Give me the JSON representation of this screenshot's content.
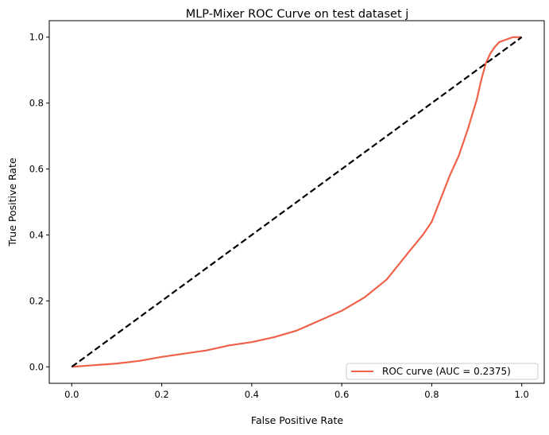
{
  "chart_data": {
    "type": "line",
    "title": "MLP-Mixer ROC Curve on test dataset j",
    "xlabel": "False Positive Rate",
    "ylabel": "True Positive Rate",
    "xlim": [
      -0.05,
      1.05
    ],
    "ylim": [
      -0.05,
      1.05
    ],
    "xticks": [
      0.0,
      0.2,
      0.4,
      0.6,
      0.8,
      1.0
    ],
    "xtick_labels": [
      "0.0",
      "0.2",
      "0.4",
      "0.6",
      "0.8",
      "1.0"
    ],
    "yticks": [
      0.0,
      0.2,
      0.4,
      0.6,
      0.8,
      1.0
    ],
    "ytick_labels": [
      "0.0",
      "0.2",
      "0.4",
      "0.6",
      "0.8",
      "1.0"
    ],
    "grid": false,
    "legend": {
      "placement": "lower-right",
      "entries": [
        "ROC curve (AUC = 0.2375)"
      ]
    },
    "series": [
      {
        "name": "ROC curve (AUC = 0.2375)",
        "color": "#f0614a",
        "x": [
          0.0,
          0.05,
          0.1,
          0.15,
          0.2,
          0.25,
          0.3,
          0.35,
          0.4,
          0.45,
          0.5,
          0.55,
          0.6,
          0.65,
          0.7,
          0.75,
          0.78,
          0.8,
          0.82,
          0.84,
          0.86,
          0.88,
          0.9,
          0.91,
          0.92,
          0.93,
          0.94,
          0.95,
          0.96,
          0.97,
          0.98,
          1.0
        ],
        "y": [
          0.0,
          0.005,
          0.01,
          0.018,
          0.03,
          0.04,
          0.05,
          0.065,
          0.075,
          0.09,
          0.11,
          0.14,
          0.17,
          0.21,
          0.265,
          0.35,
          0.4,
          0.44,
          0.51,
          0.58,
          0.64,
          0.72,
          0.81,
          0.87,
          0.92,
          0.95,
          0.97,
          0.985,
          0.99,
          0.995,
          1.0,
          1.0
        ]
      },
      {
        "name": "",
        "color": "#000000",
        "dashed": true,
        "x": [
          0.0,
          1.0
        ],
        "y": [
          0.0,
          1.0
        ]
      }
    ]
  }
}
